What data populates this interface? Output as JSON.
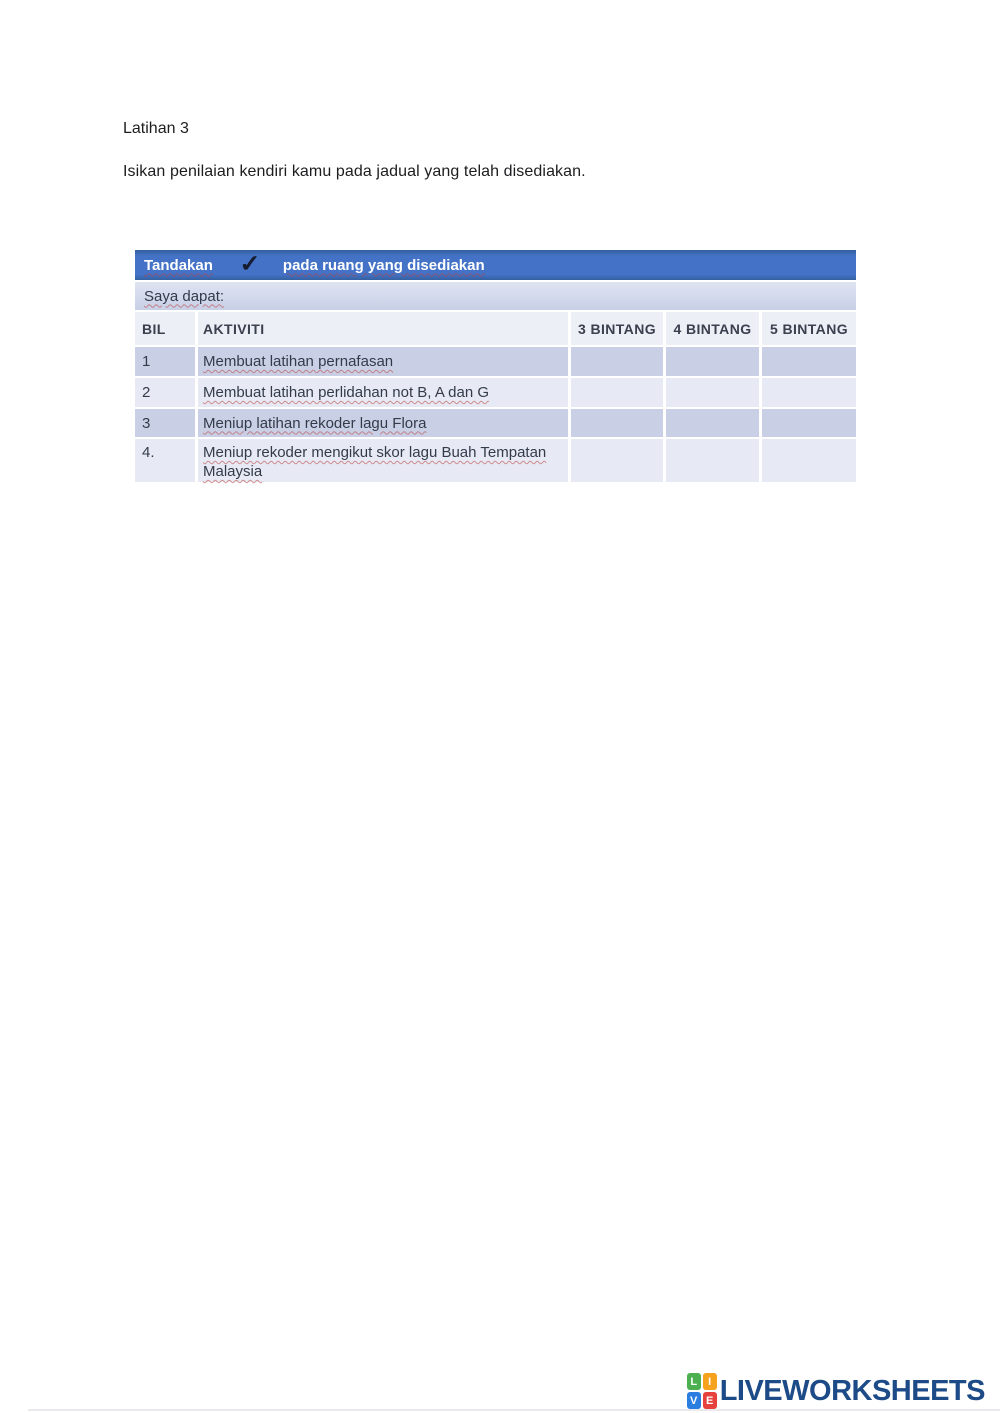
{
  "page": {
    "heading": "Latihan 3",
    "instruction": "Isikan penilaian kendiri kamu pada jadual yang telah disediakan."
  },
  "table": {
    "banner": {
      "prefix": "Tandakan",
      "check_glyph": "✓",
      "suffix": "pada ruang yang disediakan"
    },
    "subtitle": "Saya dapat:",
    "columns": [
      "BIL",
      "AKTIVITI",
      "3 BINTANG",
      "4 BINTANG",
      "5 BINTANG"
    ],
    "rows": [
      {
        "bil": "1",
        "aktiviti": "Membuat latihan pernafasan"
      },
      {
        "bil": "2",
        "aktiviti": "Membuat latihan perlidahan not B, A dan G"
      },
      {
        "bil": "3",
        "aktiviti": "Meniup latihan rekoder lagu Flora"
      },
      {
        "bil": "4.",
        "aktiviti": "Meniup rekoder mengikut skor lagu Buah Tempatan Malaysia"
      }
    ]
  },
  "footer": {
    "logo_squares": [
      {
        "letter": "L",
        "color": "#4caf50"
      },
      {
        "letter": "I",
        "color": "#f6a21d"
      },
      {
        "letter": "V",
        "color": "#2b7de0"
      },
      {
        "letter": "E",
        "color": "#e6413c"
      }
    ],
    "brand": "LIVEWORKSHEETS"
  },
  "colors": {
    "banner_blue": "#4372c6",
    "row_dark": "#c9d0e6",
    "row_light": "#e7eaf4",
    "header_row": "#edeff7",
    "brand_navy": "#1c4b87",
    "squiggle_red": "#ba3c37"
  }
}
